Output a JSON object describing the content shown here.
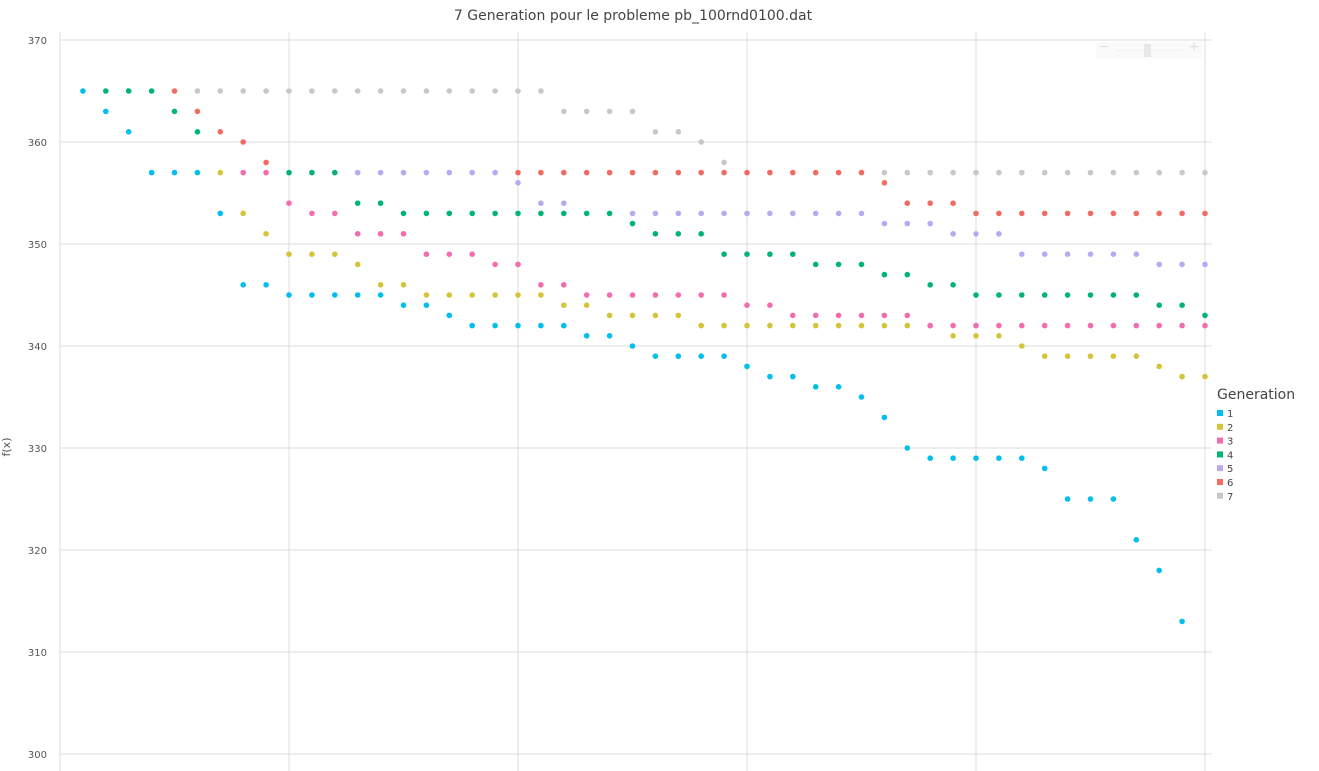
{
  "chart_data": {
    "type": "scatter",
    "title": "7 Generation pour le probleme pb_100rnd0100.dat",
    "ylabel": "f(x)",
    "xlabel": "",
    "ylim": [
      300,
      370
    ],
    "xlim": [
      0,
      50
    ],
    "yticks": [
      "300",
      "310",
      "320",
      "330",
      "340",
      "350",
      "360",
      "370"
    ],
    "grid": true,
    "legend": {
      "title": "Generation",
      "position": "right"
    },
    "series": [
      {
        "name": "1",
        "color": "#00BFEF",
        "points": [
          [
            1,
            365
          ],
          [
            2,
            363
          ],
          [
            3,
            361
          ],
          [
            4,
            357
          ],
          [
            5,
            357
          ],
          [
            6,
            357
          ],
          [
            7,
            353
          ],
          [
            8,
            346
          ],
          [
            9,
            346
          ],
          [
            10,
            345
          ],
          [
            11,
            345
          ],
          [
            12,
            345
          ],
          [
            13,
            345
          ],
          [
            14,
            345
          ],
          [
            15,
            344
          ],
          [
            16,
            344
          ],
          [
            17,
            343
          ],
          [
            18,
            342
          ],
          [
            19,
            342
          ],
          [
            20,
            342
          ],
          [
            21,
            342
          ],
          [
            22,
            342
          ],
          [
            23,
            341
          ],
          [
            24,
            341
          ],
          [
            25,
            340
          ],
          [
            26,
            339
          ],
          [
            27,
            339
          ],
          [
            28,
            339
          ],
          [
            29,
            339
          ],
          [
            30,
            338
          ],
          [
            31,
            337
          ],
          [
            32,
            337
          ],
          [
            33,
            336
          ],
          [
            34,
            336
          ],
          [
            35,
            335
          ],
          [
            36,
            333
          ],
          [
            37,
            330
          ],
          [
            38,
            329
          ],
          [
            39,
            329
          ],
          [
            40,
            329
          ],
          [
            41,
            329
          ],
          [
            42,
            329
          ],
          [
            43,
            328
          ],
          [
            44,
            325
          ],
          [
            45,
            325
          ],
          [
            46,
            325
          ],
          [
            47,
            321
          ],
          [
            48,
            318
          ],
          [
            49,
            313
          ]
        ]
      },
      {
        "name": "2",
        "color": "#D4C437",
        "points": [
          [
            7,
            357
          ],
          [
            8,
            353
          ],
          [
            9,
            351
          ],
          [
            10,
            349
          ],
          [
            11,
            349
          ],
          [
            12,
            349
          ],
          [
            13,
            348
          ],
          [
            14,
            346
          ],
          [
            15,
            346
          ],
          [
            16,
            345
          ],
          [
            17,
            345
          ],
          [
            18,
            345
          ],
          [
            19,
            345
          ],
          [
            20,
            345
          ],
          [
            21,
            345
          ],
          [
            22,
            344
          ],
          [
            23,
            344
          ],
          [
            24,
            343
          ],
          [
            25,
            343
          ],
          [
            26,
            343
          ],
          [
            27,
            343
          ],
          [
            28,
            342
          ],
          [
            29,
            342
          ],
          [
            30,
            342
          ],
          [
            31,
            342
          ],
          [
            32,
            342
          ],
          [
            33,
            342
          ],
          [
            34,
            342
          ],
          [
            35,
            342
          ],
          [
            36,
            342
          ],
          [
            37,
            342
          ],
          [
            38,
            342
          ],
          [
            39,
            341
          ],
          [
            40,
            341
          ],
          [
            41,
            341
          ],
          [
            42,
            340
          ],
          [
            43,
            339
          ],
          [
            44,
            339
          ],
          [
            45,
            339
          ],
          [
            46,
            339
          ],
          [
            47,
            339
          ],
          [
            48,
            338
          ],
          [
            49,
            337
          ],
          [
            50,
            337
          ]
        ]
      },
      {
        "name": "3",
        "color": "#F46CB0",
        "points": [
          [
            8,
            357
          ],
          [
            9,
            357
          ],
          [
            10,
            354
          ],
          [
            11,
            353
          ],
          [
            12,
            353
          ],
          [
            13,
            351
          ],
          [
            14,
            351
          ],
          [
            15,
            351
          ],
          [
            16,
            349
          ],
          [
            17,
            349
          ],
          [
            18,
            349
          ],
          [
            19,
            348
          ],
          [
            20,
            348
          ],
          [
            21,
            346
          ],
          [
            22,
            346
          ],
          [
            23,
            345
          ],
          [
            24,
            345
          ],
          [
            25,
            345
          ],
          [
            26,
            345
          ],
          [
            27,
            345
          ],
          [
            28,
            345
          ],
          [
            29,
            345
          ],
          [
            30,
            344
          ],
          [
            31,
            344
          ],
          [
            32,
            343
          ],
          [
            33,
            343
          ],
          [
            34,
            343
          ],
          [
            35,
            343
          ],
          [
            36,
            343
          ],
          [
            37,
            343
          ],
          [
            38,
            342
          ],
          [
            39,
            342
          ],
          [
            40,
            342
          ],
          [
            41,
            342
          ],
          [
            42,
            342
          ],
          [
            43,
            342
          ],
          [
            44,
            342
          ],
          [
            45,
            342
          ],
          [
            46,
            342
          ],
          [
            47,
            342
          ],
          [
            48,
            342
          ],
          [
            49,
            342
          ],
          [
            50,
            342
          ]
        ]
      },
      {
        "name": "4",
        "color": "#00B27C",
        "points": [
          [
            2,
            365
          ],
          [
            3,
            365
          ],
          [
            4,
            365
          ],
          [
            5,
            363
          ],
          [
            6,
            361
          ],
          [
            10,
            357
          ],
          [
            11,
            357
          ],
          [
            12,
            357
          ],
          [
            13,
            354
          ],
          [
            14,
            354
          ],
          [
            15,
            353
          ],
          [
            16,
            353
          ],
          [
            17,
            353
          ],
          [
            18,
            353
          ],
          [
            19,
            353
          ],
          [
            20,
            353
          ],
          [
            21,
            353
          ],
          [
            22,
            353
          ],
          [
            23,
            353
          ],
          [
            24,
            353
          ],
          [
            25,
            352
          ],
          [
            26,
            351
          ],
          [
            27,
            351
          ],
          [
            28,
            351
          ],
          [
            29,
            349
          ],
          [
            30,
            349
          ],
          [
            31,
            349
          ],
          [
            32,
            349
          ],
          [
            33,
            348
          ],
          [
            34,
            348
          ],
          [
            35,
            348
          ],
          [
            36,
            347
          ],
          [
            37,
            347
          ],
          [
            38,
            346
          ],
          [
            39,
            346
          ],
          [
            40,
            345
          ],
          [
            41,
            345
          ],
          [
            42,
            345
          ],
          [
            43,
            345
          ],
          [
            44,
            345
          ],
          [
            45,
            345
          ],
          [
            46,
            345
          ],
          [
            47,
            345
          ],
          [
            48,
            344
          ],
          [
            49,
            344
          ],
          [
            50,
            343
          ]
        ]
      },
      {
        "name": "5",
        "color": "#BBA8F2",
        "points": [
          [
            13,
            357
          ],
          [
            14,
            357
          ],
          [
            15,
            357
          ],
          [
            16,
            357
          ],
          [
            17,
            357
          ],
          [
            18,
            357
          ],
          [
            19,
            357
          ],
          [
            20,
            356
          ],
          [
            21,
            354
          ],
          [
            22,
            354
          ],
          [
            25,
            353
          ],
          [
            26,
            353
          ],
          [
            27,
            353
          ],
          [
            28,
            353
          ],
          [
            29,
            353
          ],
          [
            30,
            353
          ],
          [
            31,
            353
          ],
          [
            32,
            353
          ],
          [
            33,
            353
          ],
          [
            34,
            353
          ],
          [
            35,
            353
          ],
          [
            36,
            352
          ],
          [
            37,
            352
          ],
          [
            38,
            352
          ],
          [
            39,
            351
          ],
          [
            40,
            351
          ],
          [
            41,
            351
          ],
          [
            42,
            349
          ],
          [
            43,
            349
          ],
          [
            44,
            349
          ],
          [
            45,
            349
          ],
          [
            46,
            349
          ],
          [
            47,
            349
          ],
          [
            48,
            348
          ],
          [
            49,
            348
          ],
          [
            50,
            348
          ]
        ]
      },
      {
        "name": "6",
        "color": "#F16B62",
        "points": [
          [
            5,
            365
          ],
          [
            6,
            363
          ],
          [
            7,
            361
          ],
          [
            8,
            360
          ],
          [
            9,
            358
          ],
          [
            20,
            357
          ],
          [
            21,
            357
          ],
          [
            22,
            357
          ],
          [
            23,
            357
          ],
          [
            24,
            357
          ],
          [
            25,
            357
          ],
          [
            26,
            357
          ],
          [
            27,
            357
          ],
          [
            28,
            357
          ],
          [
            29,
            357
          ],
          [
            30,
            357
          ],
          [
            31,
            357
          ],
          [
            32,
            357
          ],
          [
            33,
            357
          ],
          [
            34,
            357
          ],
          [
            35,
            357
          ],
          [
            36,
            356
          ],
          [
            37,
            354
          ],
          [
            38,
            354
          ],
          [
            39,
            354
          ],
          [
            40,
            353
          ],
          [
            41,
            353
          ],
          [
            42,
            353
          ],
          [
            43,
            353
          ],
          [
            44,
            353
          ],
          [
            45,
            353
          ],
          [
            46,
            353
          ],
          [
            47,
            353
          ],
          [
            48,
            353
          ],
          [
            49,
            353
          ],
          [
            50,
            353
          ]
        ]
      },
      {
        "name": "7",
        "color": "#C8C8C8",
        "points": [
          [
            6,
            365
          ],
          [
            7,
            365
          ],
          [
            8,
            365
          ],
          [
            9,
            365
          ],
          [
            10,
            365
          ],
          [
            11,
            365
          ],
          [
            12,
            365
          ],
          [
            13,
            365
          ],
          [
            14,
            365
          ],
          [
            15,
            365
          ],
          [
            16,
            365
          ],
          [
            17,
            365
          ],
          [
            18,
            365
          ],
          [
            19,
            365
          ],
          [
            20,
            365
          ],
          [
            21,
            365
          ],
          [
            22,
            363
          ],
          [
            23,
            363
          ],
          [
            24,
            363
          ],
          [
            25,
            363
          ],
          [
            26,
            361
          ],
          [
            27,
            361
          ],
          [
            28,
            360
          ],
          [
            29,
            358
          ],
          [
            36,
            357
          ],
          [
            37,
            357
          ],
          [
            38,
            357
          ],
          [
            39,
            357
          ],
          [
            40,
            357
          ],
          [
            41,
            357
          ],
          [
            42,
            357
          ],
          [
            43,
            357
          ],
          [
            44,
            357
          ],
          [
            45,
            357
          ],
          [
            46,
            357
          ],
          [
            47,
            357
          ],
          [
            48,
            357
          ],
          [
            49,
            357
          ],
          [
            50,
            357
          ]
        ]
      }
    ]
  },
  "zoom": {
    "minus_label": "−",
    "plus_label": "+"
  }
}
